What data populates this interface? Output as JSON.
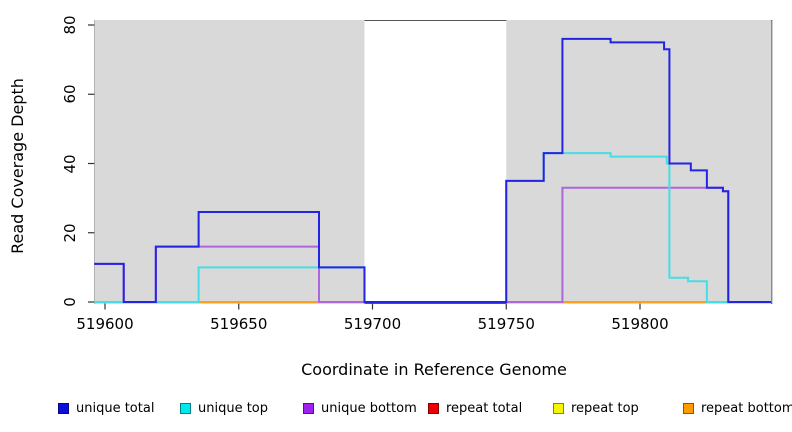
{
  "chart_data": {
    "type": "line",
    "subtype": "step-coverage",
    "title": "",
    "xlabel": "Coordinate in Reference Genome",
    "ylabel": "Read Coverage Depth",
    "xlim": [
      519596,
      519849
    ],
    "ylim": [
      0,
      81
    ],
    "grid": false,
    "legend_position": "bottom",
    "x_ticks": [
      519600,
      519650,
      519700,
      519750,
      519800
    ],
    "y_ticks": [
      0,
      20,
      40,
      60,
      80
    ],
    "shade_color": "#d9d9d9",
    "shaded_regions": [
      [
        519596,
        519697
      ],
      [
        519750,
        519849
      ]
    ],
    "series": [
      {
        "name": "repeat total",
        "color": "#e82222",
        "steps": [
          [
            519596,
            0
          ],
          [
            519849,
            0
          ]
        ]
      },
      {
        "name": "repeat top",
        "color": "#f0f000",
        "steps": [
          [
            519596,
            0
          ],
          [
            519849,
            0
          ]
        ]
      },
      {
        "name": "repeat bottom",
        "color": "#ff9d1c",
        "steps": [
          [
            519596,
            0
          ],
          [
            519849,
            0
          ]
        ]
      },
      {
        "name": "unique bottom",
        "color": "#ad66dd",
        "steps": [
          [
            519596,
            11
          ],
          [
            519607,
            0
          ],
          [
            519619,
            16
          ],
          [
            519680,
            0
          ],
          [
            519771,
            33
          ],
          [
            519831,
            32
          ],
          [
            519833,
            0
          ],
          [
            519849,
            0
          ]
        ]
      },
      {
        "name": "unique top",
        "color": "#45dde6",
        "steps": [
          [
            519596,
            0
          ],
          [
            519635,
            10
          ],
          [
            519697,
            0
          ],
          [
            519750,
            35
          ],
          [
            519764,
            43
          ],
          [
            519789,
            42
          ],
          [
            519810,
            40
          ],
          [
            519811,
            7
          ],
          [
            519818,
            6
          ],
          [
            519825,
            0
          ],
          [
            519849,
            0
          ]
        ]
      },
      {
        "name": "unique total",
        "color": "#2424e4",
        "steps": [
          [
            519596,
            11
          ],
          [
            519607,
            0
          ],
          [
            519619,
            16
          ],
          [
            519635,
            26
          ],
          [
            519680,
            10
          ],
          [
            519697,
            0
          ],
          [
            519750,
            35
          ],
          [
            519764,
            43
          ],
          [
            519771,
            76
          ],
          [
            519789,
            75
          ],
          [
            519809,
            73
          ],
          [
            519811,
            40
          ],
          [
            519819,
            38
          ],
          [
            519825,
            33
          ],
          [
            519831,
            32
          ],
          [
            519833,
            0
          ],
          [
            519849,
            0
          ]
        ]
      }
    ],
    "legend": [
      {
        "label": "unique total",
        "color": "#0d0de0"
      },
      {
        "label": "unique top",
        "color": "#00e8f0"
      },
      {
        "label": "unique bottom",
        "color": "#a020f0"
      },
      {
        "label": "repeat total",
        "color": "#ee0000"
      },
      {
        "label": "repeat top",
        "color": "#f5f500"
      },
      {
        "label": "repeat bottom",
        "color": "#ff9d00"
      }
    ]
  }
}
